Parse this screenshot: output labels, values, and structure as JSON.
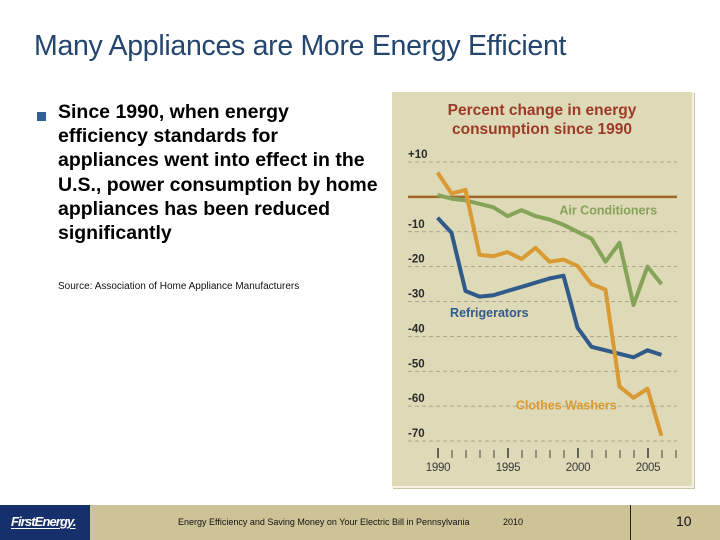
{
  "slide": {
    "title": "Many Appliances are More Energy Efficient",
    "bullet": "Since 1990, when energy efficiency standards for appliances went into effect in the U.S., power consumption by home appliances has been reduced significantly",
    "source": "Source: Association of Home Appliance Manufacturers"
  },
  "footer": {
    "logo_text": "FirstEnergy.",
    "text": "Energy Efficiency and Saving Money on Your Electric Bill in Pennsylvania",
    "year": "2010",
    "page_number": "10"
  },
  "colors": {
    "title": "#24466e",
    "panel_bg": "#ded9b6",
    "chart_title": "#9b3b27",
    "baseline": "#a0662a",
    "air_conditioners": "#86a35a",
    "refrigerators": "#2f5a8a",
    "clothes_washers": "#d99a34",
    "footer_bar": "#cdc397",
    "footer_logo": "#15306a"
  },
  "chart_data": {
    "type": "line",
    "title": "Percent change in energy consumption since 1990",
    "title_lines": [
      "Percent change in energy",
      "consumption since 1990"
    ],
    "xlabel": "",
    "ylabel": "",
    "ylim": [
      -70,
      10
    ],
    "xlim": [
      1989.4,
      2007.6
    ],
    "y_ticks": [
      10,
      0,
      -10,
      -20,
      -30,
      -40,
      -50,
      -60,
      -70
    ],
    "y_tick_labels": [
      "+10",
      "",
      "-10",
      "-20",
      "-30",
      "-40",
      "-50",
      "-60",
      "-70"
    ],
    "x_ticks": [
      1990,
      1991,
      1992,
      1993,
      1994,
      1995,
      1996,
      1997,
      1998,
      1999,
      2000,
      2001,
      2002,
      2003,
      2004,
      2005,
      2006,
      2007
    ],
    "x_tick_labels": [
      {
        "value": 1990,
        "label": "1990"
      },
      {
        "value": 1995,
        "label": "1995"
      },
      {
        "value": 2000,
        "label": "2000"
      },
      {
        "value": 2005,
        "label": "2005"
      }
    ],
    "grid": true,
    "baseline": 0,
    "series": [
      {
        "name": "Air Conditioners",
        "color_key": "air_conditioners",
        "label_at": [
          2002.2,
          -5
        ],
        "x": [
          1990,
          1991,
          1992,
          1993,
          1994,
          1995,
          1996,
          1997,
          1998,
          1999,
          2000,
          2001,
          2002,
          2003,
          2004,
          2005,
          2006
        ],
        "values": [
          0.5,
          -0.5,
          -1,
          -2,
          -3,
          -5.5,
          -3.8,
          -5.5,
          -6.5,
          -8,
          -10,
          -12,
          -18.6,
          -13.2,
          -31,
          -20,
          -25
        ]
      },
      {
        "name": "Refrigerators",
        "color_key": "refrigerators",
        "label_at": [
          1993.7,
          -34.5
        ],
        "x": [
          1990,
          1991,
          1992,
          1993,
          1994,
          1995,
          1996,
          1997,
          1998,
          1999,
          2000,
          2001,
          2002,
          2003,
          2004,
          2005,
          2006
        ],
        "values": [
          -6,
          -10.3,
          -27,
          -28.6,
          -28.2,
          -27,
          -25.8,
          -24.6,
          -23.4,
          -22.6,
          -37.5,
          -43,
          -44,
          -45,
          -46,
          -44,
          -45.3
        ]
      },
      {
        "name": "Clothes Washers",
        "color_key": "clothes_washers",
        "label_at": [
          1999.2,
          -61
        ],
        "x": [
          1990,
          1991,
          1992,
          1993,
          1994,
          1995,
          1996,
          1997,
          1998,
          1999,
          2000,
          2001,
          2002,
          2003,
          2004,
          2005,
          2006
        ],
        "values": [
          7,
          1,
          2,
          -16.6,
          -17,
          -15.8,
          -17.8,
          -14.6,
          -18.6,
          -18,
          -19.8,
          -25,
          -26.6,
          -54.4,
          -57.6,
          -55,
          -68.5
        ]
      }
    ]
  }
}
